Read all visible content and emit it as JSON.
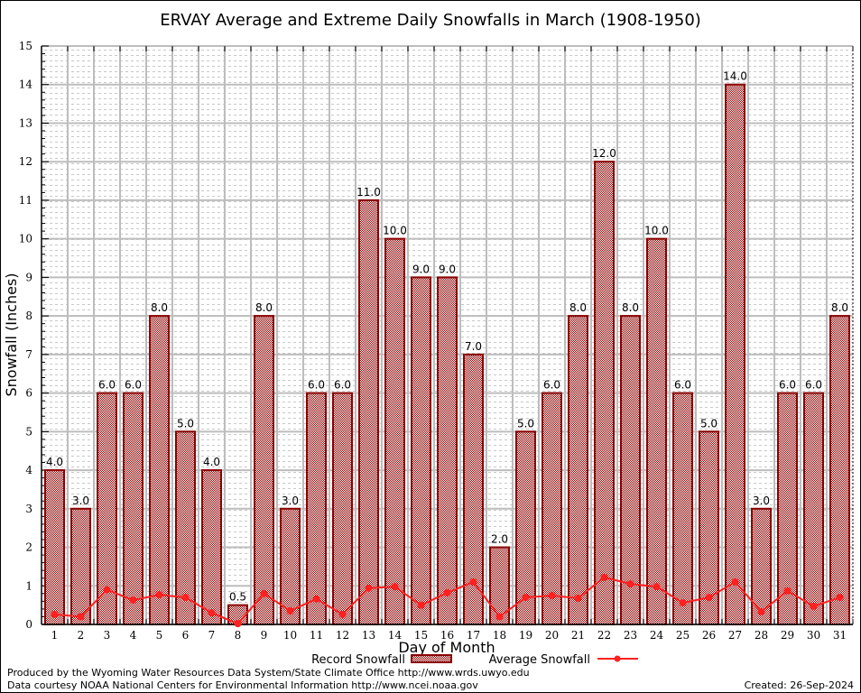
{
  "chart_data": {
    "type": "bar",
    "title": "ERVAY Average and Extreme Daily Snowfalls in March (1908-1950)",
    "xlabel": "Day of Month",
    "ylabel": "Snowfall (Inches)",
    "ylim": [
      0,
      15
    ],
    "yticks": [
      0,
      1,
      2,
      3,
      4,
      5,
      6,
      7,
      8,
      9,
      10,
      11,
      12,
      13,
      14,
      15
    ],
    "grid": true,
    "categories": [
      "1",
      "2",
      "3",
      "4",
      "5",
      "6",
      "7",
      "8",
      "9",
      "10",
      "11",
      "12",
      "13",
      "14",
      "15",
      "16",
      "17",
      "18",
      "19",
      "20",
      "21",
      "22",
      "23",
      "24",
      "25",
      "26",
      "27",
      "28",
      "29",
      "30",
      "31"
    ],
    "series": [
      {
        "name": "Record Snowfall",
        "type": "bar",
        "color": "#8b0000",
        "values": [
          4.0,
          3.0,
          6.0,
          6.0,
          8.0,
          5.0,
          4.0,
          0.5,
          8.0,
          3.0,
          6.0,
          6.0,
          11.0,
          10.0,
          9.0,
          9.0,
          7.0,
          2.0,
          5.0,
          6.0,
          8.0,
          12.0,
          8.0,
          10.0,
          6.0,
          5.0,
          14.0,
          3.0,
          6.0,
          6.0,
          8.0
        ],
        "labels": [
          "4.0",
          "3.0",
          "6.0",
          "6.0",
          "8.0",
          "5.0",
          "4.0",
          "0.5",
          "8.0",
          "3.0",
          "6.0",
          "6.0",
          "11.0",
          "10.0",
          "9.0",
          "9.0",
          "7.0",
          "2.0",
          "5.0",
          "6.0",
          "8.0",
          "12.0",
          "8.0",
          "10.0",
          "6.0",
          "5.0",
          "14.0",
          "3.0",
          "6.0",
          "6.0",
          "8.0"
        ]
      },
      {
        "name": "Average Snowfall",
        "type": "line",
        "color": "#ff2020",
        "values": [
          0.26,
          0.2,
          0.9,
          0.63,
          0.77,
          0.7,
          0.3,
          0.02,
          0.8,
          0.35,
          0.66,
          0.26,
          0.94,
          0.98,
          0.5,
          0.82,
          1.1,
          0.2,
          0.7,
          0.75,
          0.68,
          1.22,
          1.05,
          0.98,
          0.56,
          0.7,
          1.1,
          0.33,
          0.87,
          0.47,
          0.7
        ]
      }
    ],
    "legend": "bottom-center"
  },
  "footer": {
    "line1": "Produced by the Wyoming Water Resources Data System/State Climate Office http://www.wrds.uwyo.edu",
    "line2": "Data courtesy NOAA National Centers for Environmental Information http://www.ncei.noaa.gov",
    "created": "Created: 26-Sep-2024"
  }
}
